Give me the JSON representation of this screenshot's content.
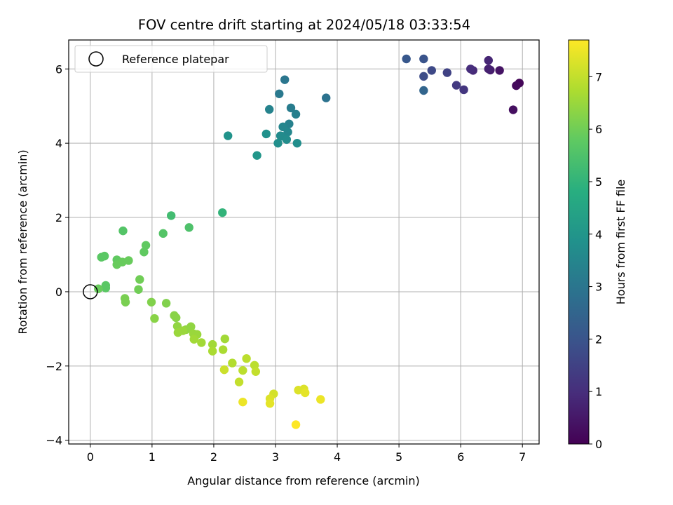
{
  "chart_data": {
    "type": "scatter",
    "title": "FOV centre drift starting at 2024/05/18 03:33:54",
    "xlabel": "Angular distance from reference (arcmin)",
    "ylabel": "Rotation from reference (arcmin)",
    "xlim": [
      -0.35,
      7.27
    ],
    "ylim": [
      -4.1,
      6.78
    ],
    "xticks": [
      0,
      1,
      2,
      3,
      4,
      5,
      6,
      7
    ],
    "yticks": [
      -4,
      -2,
      0,
      2,
      4,
      6
    ],
    "grid": true,
    "legend": {
      "placement": "top-left",
      "entries": [
        "Reference platepar"
      ]
    },
    "reference_point": {
      "x": 0,
      "y": 0,
      "label": "Reference platepar"
    },
    "colorbar": {
      "label": "Hours from first FF file",
      "colormap": "viridis",
      "range": [
        0,
        7.7
      ],
      "ticks": [
        0,
        1,
        2,
        3,
        4,
        5,
        6,
        7
      ]
    },
    "points": [
      [
        6.95,
        5.62,
        0.1
      ],
      [
        6.9,
        5.55,
        0.2
      ],
      [
        6.85,
        4.9,
        0.3
      ],
      [
        6.63,
        5.96,
        0.4
      ],
      [
        6.48,
        5.97,
        0.6
      ],
      [
        6.45,
        6.0,
        0.7
      ],
      [
        6.45,
        6.23,
        0.8
      ],
      [
        6.2,
        5.96,
        0.9
      ],
      [
        6.16,
        6.0,
        1.0
      ],
      [
        6.05,
        5.44,
        1.2
      ],
      [
        5.93,
        5.56,
        1.3
      ],
      [
        5.78,
        5.9,
        1.5
      ],
      [
        5.53,
        5.96,
        1.7
      ],
      [
        5.4,
        5.8,
        1.8
      ],
      [
        5.4,
        6.27,
        2.0
      ],
      [
        5.12,
        6.27,
        2.1
      ],
      [
        5.4,
        5.42,
        2.5
      ],
      [
        3.82,
        5.22,
        2.9
      ],
      [
        3.15,
        5.71,
        3.0
      ],
      [
        3.06,
        5.33,
        3.1
      ],
      [
        3.25,
        4.95,
        3.2
      ],
      [
        3.33,
        4.78,
        3.3
      ],
      [
        3.22,
        4.52,
        3.35
      ],
      [
        2.9,
        4.91,
        3.4
      ],
      [
        3.12,
        4.44,
        3.5
      ],
      [
        3.2,
        4.3,
        3.55
      ],
      [
        3.1,
        4.19,
        3.6
      ],
      [
        3.08,
        4.2,
        3.65
      ],
      [
        3.18,
        4.1,
        3.7
      ],
      [
        3.35,
        4.0,
        3.75
      ],
      [
        3.04,
        4.0,
        3.8
      ],
      [
        2.85,
        4.25,
        3.85
      ],
      [
        2.23,
        4.2,
        3.9
      ],
      [
        2.7,
        3.67,
        4.0
      ],
      [
        2.14,
        2.13,
        5.0
      ],
      [
        1.31,
        2.05,
        5.3
      ],
      [
        1.6,
        1.73,
        5.5
      ],
      [
        1.18,
        1.57,
        5.6
      ],
      [
        0.53,
        1.64,
        5.6
      ],
      [
        0.9,
        1.25,
        5.8
      ],
      [
        0.87,
        1.07,
        5.8
      ],
      [
        0.23,
        0.96,
        5.7
      ],
      [
        0.18,
        0.93,
        5.7
      ],
      [
        0.43,
        0.86,
        5.8
      ],
      [
        0.62,
        0.84,
        5.9
      ],
      [
        0.52,
        0.8,
        5.9
      ],
      [
        0.43,
        0.73,
        5.9
      ],
      [
        0.8,
        0.33,
        6.0
      ],
      [
        0.25,
        0.17,
        5.7
      ],
      [
        0.25,
        0.1,
        5.7
      ],
      [
        0.13,
        0.08,
        5.9
      ],
      [
        0.78,
        0.06,
        6.0
      ],
      [
        0.56,
        -0.18,
        6.1
      ],
      [
        0.57,
        -0.28,
        6.1
      ],
      [
        0.99,
        -0.28,
        6.2
      ],
      [
        1.23,
        -0.31,
        6.2
      ],
      [
        1.36,
        -0.64,
        6.3
      ],
      [
        1.39,
        -0.7,
        6.3
      ],
      [
        1.04,
        -0.72,
        6.3
      ],
      [
        1.41,
        -0.93,
        6.4
      ],
      [
        1.63,
        -0.94,
        6.4
      ],
      [
        1.55,
        -1.02,
        6.4
      ],
      [
        1.5,
        -1.05,
        6.5
      ],
      [
        1.42,
        -1.1,
        6.5
      ],
      [
        1.67,
        -1.13,
        6.5
      ],
      [
        1.73,
        -1.15,
        6.5
      ],
      [
        1.68,
        -1.28,
        6.6
      ],
      [
        1.8,
        -1.37,
        6.6
      ],
      [
        2.18,
        -1.27,
        6.6
      ],
      [
        1.98,
        -1.42,
        6.6
      ],
      [
        2.15,
        -1.56,
        6.7
      ],
      [
        1.98,
        -1.6,
        6.7
      ],
      [
        2.3,
        -1.92,
        6.8
      ],
      [
        2.53,
        -1.8,
        6.9
      ],
      [
        2.66,
        -1.98,
        6.9
      ],
      [
        2.68,
        -2.15,
        7.0
      ],
      [
        2.17,
        -2.1,
        7.1
      ],
      [
        2.47,
        -2.12,
        6.9
      ],
      [
        2.41,
        -2.43,
        7.0
      ],
      [
        2.97,
        -2.75,
        7.2
      ],
      [
        2.91,
        -2.88,
        7.3
      ],
      [
        3.37,
        -2.65,
        7.3
      ],
      [
        3.46,
        -2.62,
        7.3
      ],
      [
        3.48,
        -2.72,
        7.4
      ],
      [
        2.91,
        -3.01,
        7.4
      ],
      [
        2.47,
        -2.97,
        7.5
      ],
      [
        3.73,
        -2.9,
        7.5
      ],
      [
        3.33,
        -3.58,
        7.7
      ]
    ]
  }
}
